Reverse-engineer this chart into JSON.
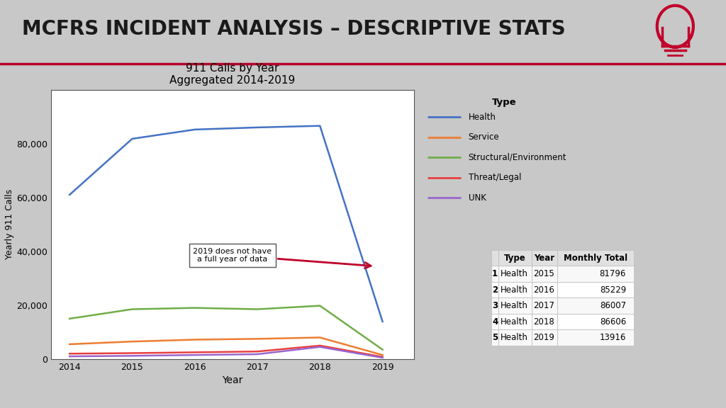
{
  "title": "MCFRS INCIDENT ANALYSIS – DESCRIPTIVE STATS",
  "chart_title": "911 Calls by Year",
  "chart_subtitle": "Aggregated 2014-2019",
  "xlabel": "Year",
  "ylabel": "Yearly 911 Calls",
  "years": [
    2014,
    2015,
    2016,
    2017,
    2018,
    2019
  ],
  "series": {
    "Health": {
      "values": [
        61000,
        81796,
        85229,
        86007,
        86606,
        13916
      ],
      "color": "#4472C4"
    },
    "Service": {
      "values": [
        5500,
        6500,
        7200,
        7500,
        8000,
        1500
      ],
      "color": "#ED7D31"
    },
    "Structural/Environment": {
      "values": [
        15000,
        18500,
        19000,
        18500,
        19800,
        3500
      ],
      "color": "#70AD47"
    },
    "Threat/Legal": {
      "values": [
        2000,
        2200,
        2500,
        2800,
        5000,
        800
      ],
      "color": "#E84040"
    },
    "UNK": {
      "values": [
        1000,
        1200,
        1500,
        1800,
        4500,
        500
      ],
      "color": "#9966CC"
    }
  },
  "annotation_text": "2019 does not have\na full year of data",
  "table_data": {
    "headers": [
      "",
      "Type",
      "Year",
      "Monthly Total"
    ],
    "rows": [
      [
        "1",
        "Health",
        "2015",
        "81796"
      ],
      [
        "2",
        "Health",
        "2016",
        "85229"
      ],
      [
        "3",
        "Health",
        "2017",
        "86007"
      ],
      [
        "4",
        "Health",
        "2018",
        "86606"
      ],
      [
        "5",
        "Health",
        "2019",
        "13916"
      ]
    ]
  },
  "bg_color": "#c8c8c8",
  "plot_bg_color": "#ffffff",
  "title_color": "#1a1a1a",
  "title_bar_color": "#b5002a",
  "bulb_color": "#c0002a",
  "ylim": [
    0,
    100000
  ],
  "yticks": [
    0,
    20000,
    40000,
    60000,
    80000
  ]
}
